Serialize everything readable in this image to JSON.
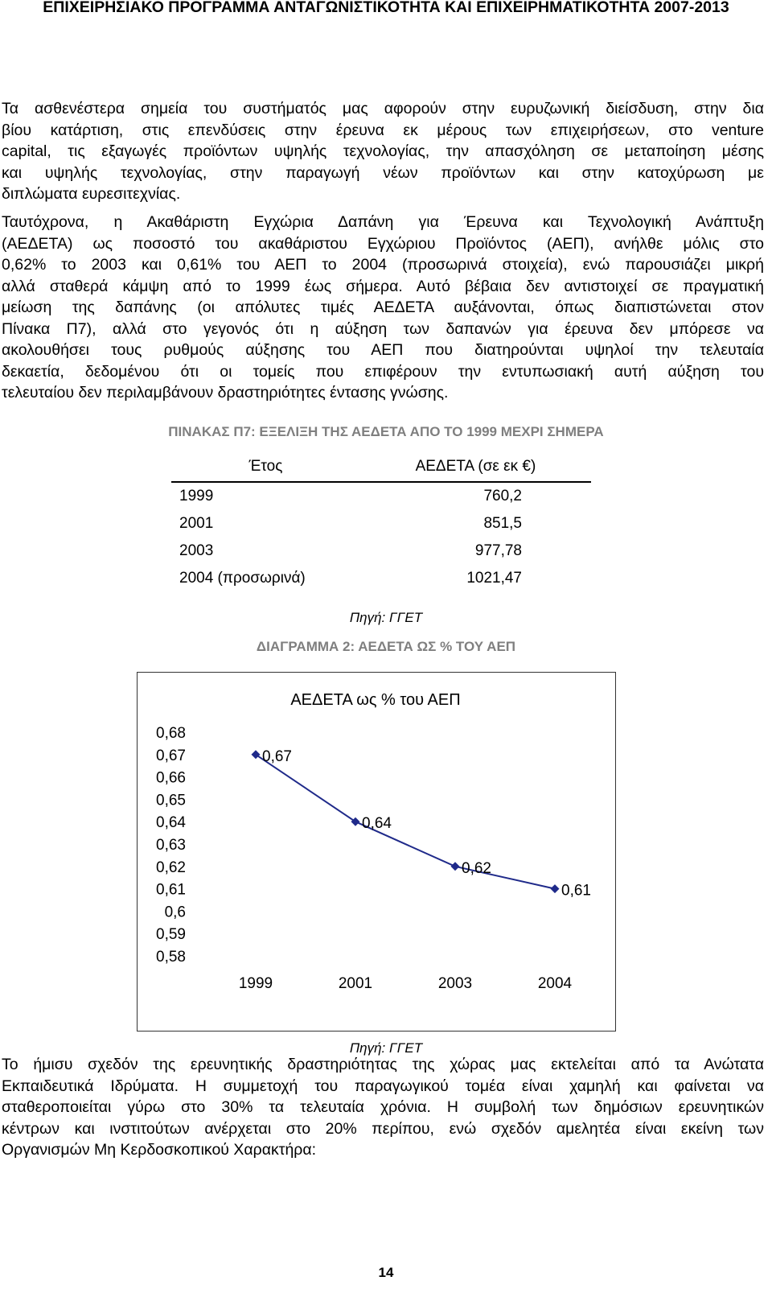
{
  "header": "ΕΠΙΧΕΙΡΗΣΙΑΚΟ ΠΡΟΓΡΑΜΜΑ ΑΝΤΑΓΩΝΙΣΤΙΚΟΤΗΤΑ ΚΑΙ ΕΠΙΧΕΙΡΗΜΑΤΙΚΟΤΗΤΑ 2007-2013",
  "paragraph1": [
    "Τα ασθενέστερα σημεία του συστήματός μας αφορούν στην ευρυζωνική διείσδυση, στην δια",
    "βίου κατάρτιση, στις επενδύσεις στην έρευνα εκ μέρους των επιχειρήσεων, στο venture",
    "capital, τις εξαγωγές προϊόντων υψηλής τεχνολογίας, την απασχόληση σε μεταποίηση μέσης",
    "και υψηλής τεχνολογίας, στην παραγωγή νέων προϊόντων και στην κατοχύρωση με",
    "διπλώματα ευρεσιτεχνίας."
  ],
  "paragraph2": [
    "Ταυτόχρονα, η Ακαθάριστη Εγχώρια Δαπάνη για Έρευνα και Τεχνολογική Ανάπτυξη",
    "(ΑΕΔΕΤΑ) ως ποσοστό του ακαθάριστου Εγχώριου Προϊόντος (ΑΕΠ), ανήλθε μόλις στο",
    "0,62% το 2003 και 0,61% του ΑΕΠ το 2004 (προσωρινά στοιχεία), ενώ παρουσιάζει μικρή",
    "αλλά σταθερά κάμψη από το 1999 έως σήμερα. Αυτό βέβαια δεν αντιστοιχεί σε πραγματική",
    "μείωση της δαπάνης (οι απόλυτες τιμές ΑΕΔΕΤΑ αυξάνονται, όπως διαπιστώνεται στον",
    "Πίνακα Π7), αλλά στο γεγονός ότι η αύξηση των δαπανών για έρευνα δεν μπόρεσε να",
    "ακολουθήσει τους ρυθμούς αύξησης του ΑΕΠ που διατηρούνται υψηλοί την τελευταία",
    "δεκαετία, δεδομένου ότι οι τομείς που επιφέρουν την εντυπωσιακή αυτή αύξηση του",
    "τελευταίου δεν περιλαμβάνουν δραστηριότητες έντασης γνώσης."
  ],
  "table_caption": "ΠΙΝΑΚΑΣ Π7: ΕΞΕΛΙΞΗ ΤΗΣ ΑΕΔΕΤΑ ΑΠΟ ΤΟ 1999 ΜΕΧΡΙ ΣΗΜΕΡΑ",
  "table": {
    "headers": [
      "Έτος",
      "ΑΕΔΕΤΑ (σε εκ €)"
    ],
    "rows": [
      {
        "year": "1999",
        "value": "760,2"
      },
      {
        "year": "2001",
        "value": "851,5"
      },
      {
        "year": "2003",
        "value": "977,78"
      },
      {
        "year": "2004 (προσωρινά)",
        "value": "1021,47"
      }
    ]
  },
  "table_source": "Πηγή: ΓΓΕΤ",
  "chart_caption": "ΔΙΑΓΡΑΜΜΑ 2: ΑΕΔΕΤΑ ΩΣ % ΤΟΥ ΑΕΠ",
  "chart_data": {
    "type": "line",
    "title": "ΑΕΔΕΤΑ ως % του ΑΕΠ",
    "categories": [
      "1999",
      "2001",
      "2003",
      "2004"
    ],
    "values": [
      0.67,
      0.64,
      0.62,
      0.61
    ],
    "data_labels": [
      "0,67",
      "0,64",
      "0,62",
      "0,61"
    ],
    "ylim": [
      0.58,
      0.68
    ],
    "y_ticks": [
      "0,68",
      "0,67",
      "0,66",
      "0,65",
      "0,64",
      "0,63",
      "0,62",
      "0,61",
      "0,6",
      "0,59",
      "0,58"
    ],
    "line_color": "#1f2a8a",
    "grid": false
  },
  "chart_source": "Πηγή: ΓΓΕΤ",
  "paragraph3": [
    "Το ήμισυ σχεδόν της ερευνητικής δραστηριότητας της χώρας μας εκτελείται από τα Ανώτατα",
    "Εκπαιδευτικά Ιδρύματα. Η συμμετοχή του παραγωγικού τομέα είναι χαμηλή και φαίνεται να",
    "σταθεροποιείται γύρω στο 30% τα τελευταία χρόνια. Η συμβολή των δημόσιων ερευνητικών",
    "κέντρων και ινστιτούτων ανέρχεται στο 20% περίπου, ενώ σχεδόν αμελητέα είναι εκείνη των",
    "Οργανισμών Μη Κερδοσκοπικού Χαρακτήρα:"
  ],
  "page_number": "14"
}
